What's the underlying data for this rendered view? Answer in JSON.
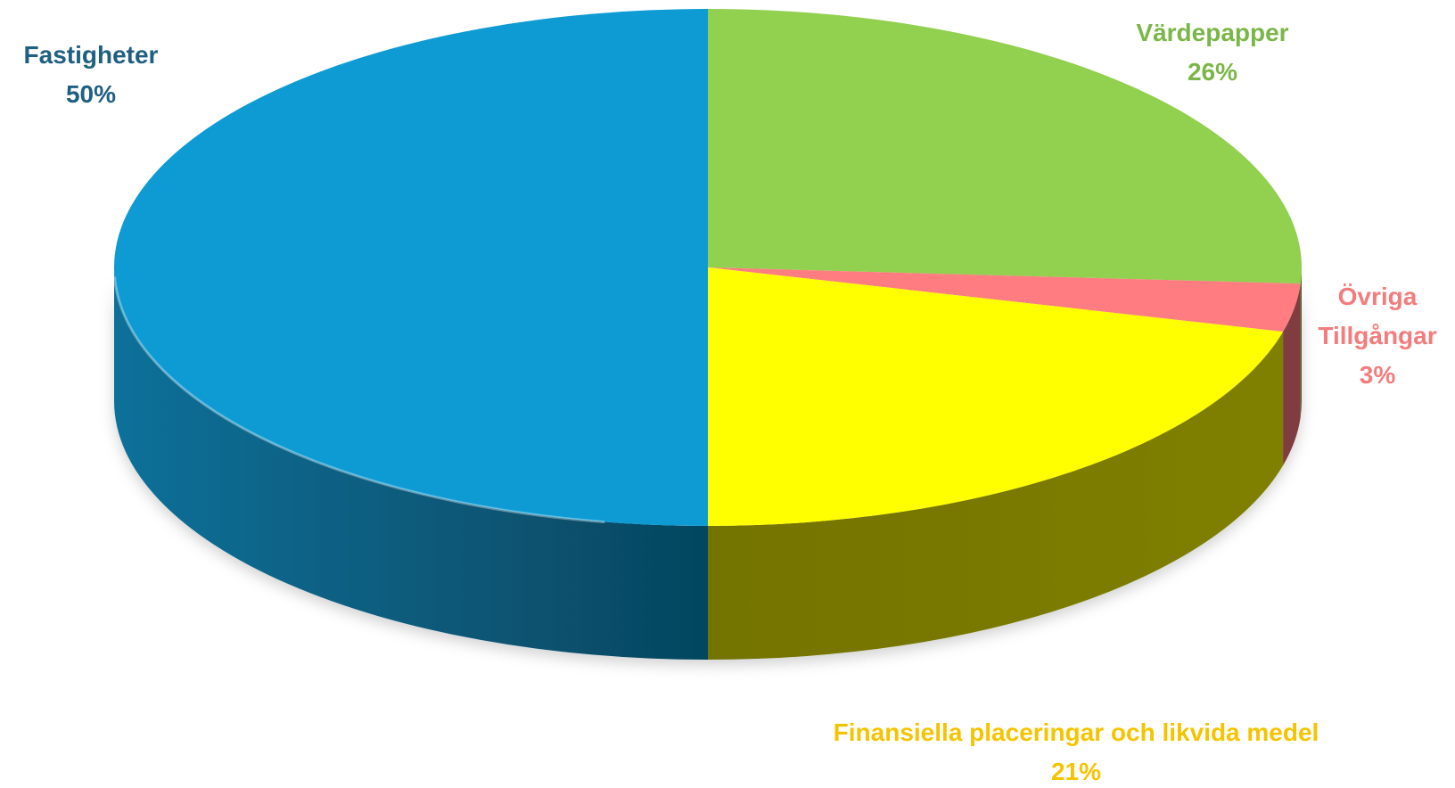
{
  "chart_data": {
    "type": "pie",
    "categories": [
      "Värdepapper",
      "Övriga Tillgångar",
      "Finansiella placeringar och likvida medel",
      "Fastigheter"
    ],
    "values": [
      26,
      3,
      21,
      50
    ],
    "value_labels": [
      "26%",
      "3%",
      "21%",
      "50%"
    ],
    "colors": [
      "#92d050",
      "#ff7c80",
      "#ffff00",
      "#0e9bd4"
    ]
  }
}
